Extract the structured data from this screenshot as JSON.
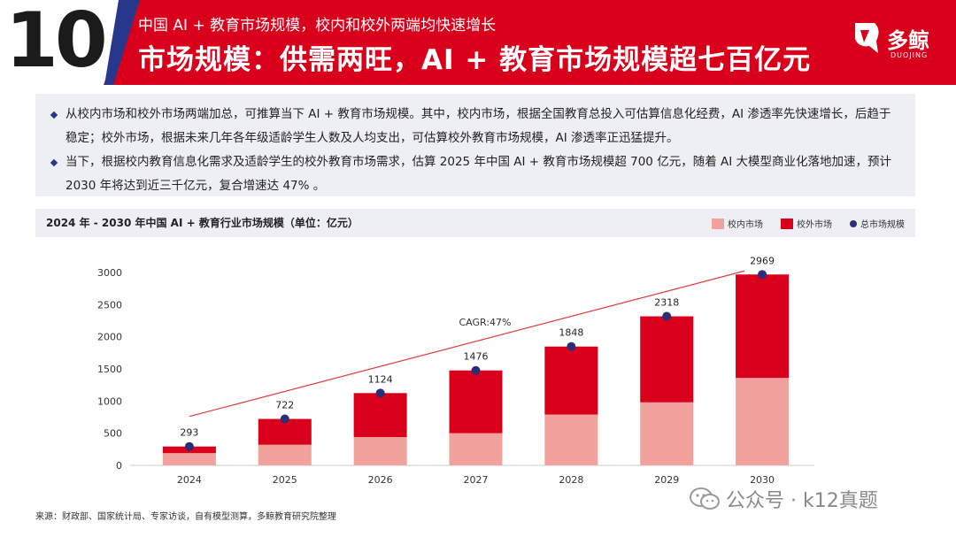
{
  "header": {
    "number": "10",
    "subtitle": "中国 AI + 教育市场规模，校内和校外两端均快速增长",
    "title": "市场规模：供需两旺，AI + 教育市场规模超七百亿元",
    "logo_text": "多鲸",
    "logo_sub": "DUOJING"
  },
  "summary": {
    "bullets": [
      "从校内市场和校外市场两端加总，可推算当下 AI + 教育市场规模。其中，校内市场，根据全国教育总投入可估算信息化经费，AI 渗透率先快速增长，后趋于稳定；校外市场，根据未来几年各年级适龄学生人数及人均支出，可估算校外教育市场规模，AI 渗透率正迅猛提升。",
      "当下，根据校内教育信息化需求及适龄学生的校外教育市场需求，估算 2025 年中国 AI + 教育市场规模超 700 亿元，随着 AI 大模型商业化落地加速，预计2030 年将达到近三千亿元，复合增速达 47% 。"
    ]
  },
  "colors": {
    "header_red": "#d9001b",
    "header_blue": "#27388c",
    "in_school": "#f2a19c",
    "out_school": "#d9001b",
    "total_dot": "#2b2f7a",
    "trend": "#e03a3a"
  },
  "chart_data": {
    "type": "bar",
    "stacked": true,
    "title": "2024 年 - 2030 年中国 AI + 教育行业市场规模（单位：亿元）",
    "categories": [
      "2024",
      "2025",
      "2026",
      "2027",
      "2028",
      "2029",
      "2030"
    ],
    "series": [
      {
        "name": "校内市场",
        "values": [
          190,
          320,
          440,
          500,
          790,
          980,
          1360
        ]
      },
      {
        "name": "校外市场",
        "values": [
          103,
          402,
          684,
          976,
          1058,
          1338,
          1609
        ]
      }
    ],
    "totals": {
      "name": "总市场规模",
      "values": [
        293,
        722,
        1124,
        1476,
        1848,
        2318,
        2969
      ]
    },
    "annotation": "CAGR:47%",
    "ylim": [
      0,
      3000
    ],
    "yticks": [
      0,
      500,
      1000,
      1500,
      2000,
      2500,
      3000
    ],
    "legend_position": "top-right",
    "grid": false
  },
  "footer": {
    "source": "来源：财政部、国家统计局、专家访谈，自有模型测算，多鲸教育研究院整理",
    "watermark": "公众号 · k12真题"
  }
}
